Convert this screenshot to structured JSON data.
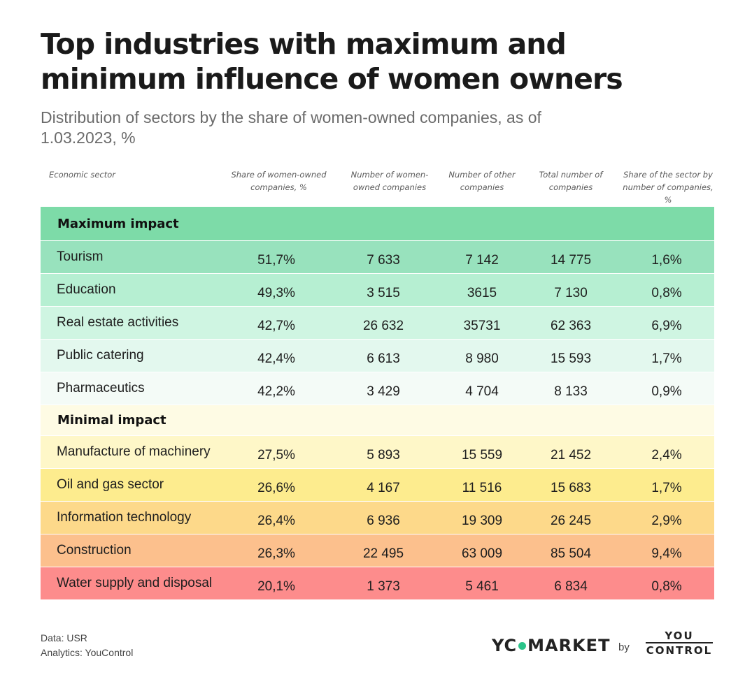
{
  "title": "Top industries with maximum and minimum influence of women owners",
  "subtitle": "Distribution of sectors by the share of women-owned companies, as of 1.03.2023, %",
  "chart_data": {
    "type": "table",
    "columns": [
      "Economic sector",
      "Share of women-owned companies, %",
      "Number of women-owned companies",
      "Number of other companies",
      "Total number of companies",
      "Share of the sector by number of companies, %"
    ],
    "groups": [
      {
        "name": "Maximum impact",
        "color": "#7ddba8",
        "rows": [
          {
            "sector": "Tourism",
            "share_women": "51,7%",
            "women": "7 633",
            "other": "7 142",
            "total": "14 775",
            "sector_share": "1,6%",
            "color": "#98e2bd"
          },
          {
            "sector": "Education",
            "share_women": "49,3%",
            "women": "3 515",
            "other": "3615",
            "total": "7 130",
            "sector_share": "0,8%",
            "color": "#b6efd2"
          },
          {
            "sector": "Real estate activities",
            "share_women": "42,7%",
            "women": "26 632",
            "other": "35731",
            "total": "62 363",
            "sector_share": "6,9%",
            "color": "#cff5e2"
          },
          {
            "sector": "Public catering",
            "share_women": "42,4%",
            "women": "6 613",
            "other": "8 980",
            "total": "15 593",
            "sector_share": "1,7%",
            "color": "#e3f8ee"
          },
          {
            "sector": "Pharmaceutics",
            "share_women": "42,2%",
            "women": "3 429",
            "other": "4 704",
            "total": "8 133",
            "sector_share": "0,9%",
            "color": "#f4fbf7"
          }
        ]
      },
      {
        "name": "Minimal impact",
        "color": "#fefbe4",
        "rows": [
          {
            "sector": "Manufacture of machinery",
            "share_women": "27,5%",
            "women": "5 893",
            "other": "15 559",
            "total": "21 452",
            "sector_share": "2,4%",
            "color": "#fef7c8"
          },
          {
            "sector": "Oil and gas sector",
            "share_women": "26,6%",
            "women": "4 167",
            "other": "11 516",
            "total": "15 683",
            "sector_share": "1,7%",
            "color": "#fdec8e"
          },
          {
            "sector": "Information technology",
            "share_women": "26,4%",
            "women": "6 936",
            "other": "19 309",
            "total": "26 245",
            "sector_share": "2,9%",
            "color": "#fdd98a"
          },
          {
            "sector": "Construction",
            "share_women": "26,3%",
            "women": "22 495",
            "other": "63 009",
            "total": "85 504",
            "sector_share": "9,4%",
            "color": "#fcc08d"
          },
          {
            "sector": "Water supply and disposal",
            "share_women": "20,1%",
            "women": "1 373",
            "other": "5 461",
            "total": "6 834",
            "sector_share": "0,8%",
            "color": "#fd8c8c"
          }
        ]
      }
    ]
  },
  "footer": {
    "data_source": "Data: USR",
    "analytics": "Analytics: YouControl"
  },
  "logos": {
    "market_left": "YC",
    "market_right": "MARKET",
    "by": "by",
    "youcontrol_top": "YOU",
    "youcontrol_bottom": "CONTROL"
  }
}
